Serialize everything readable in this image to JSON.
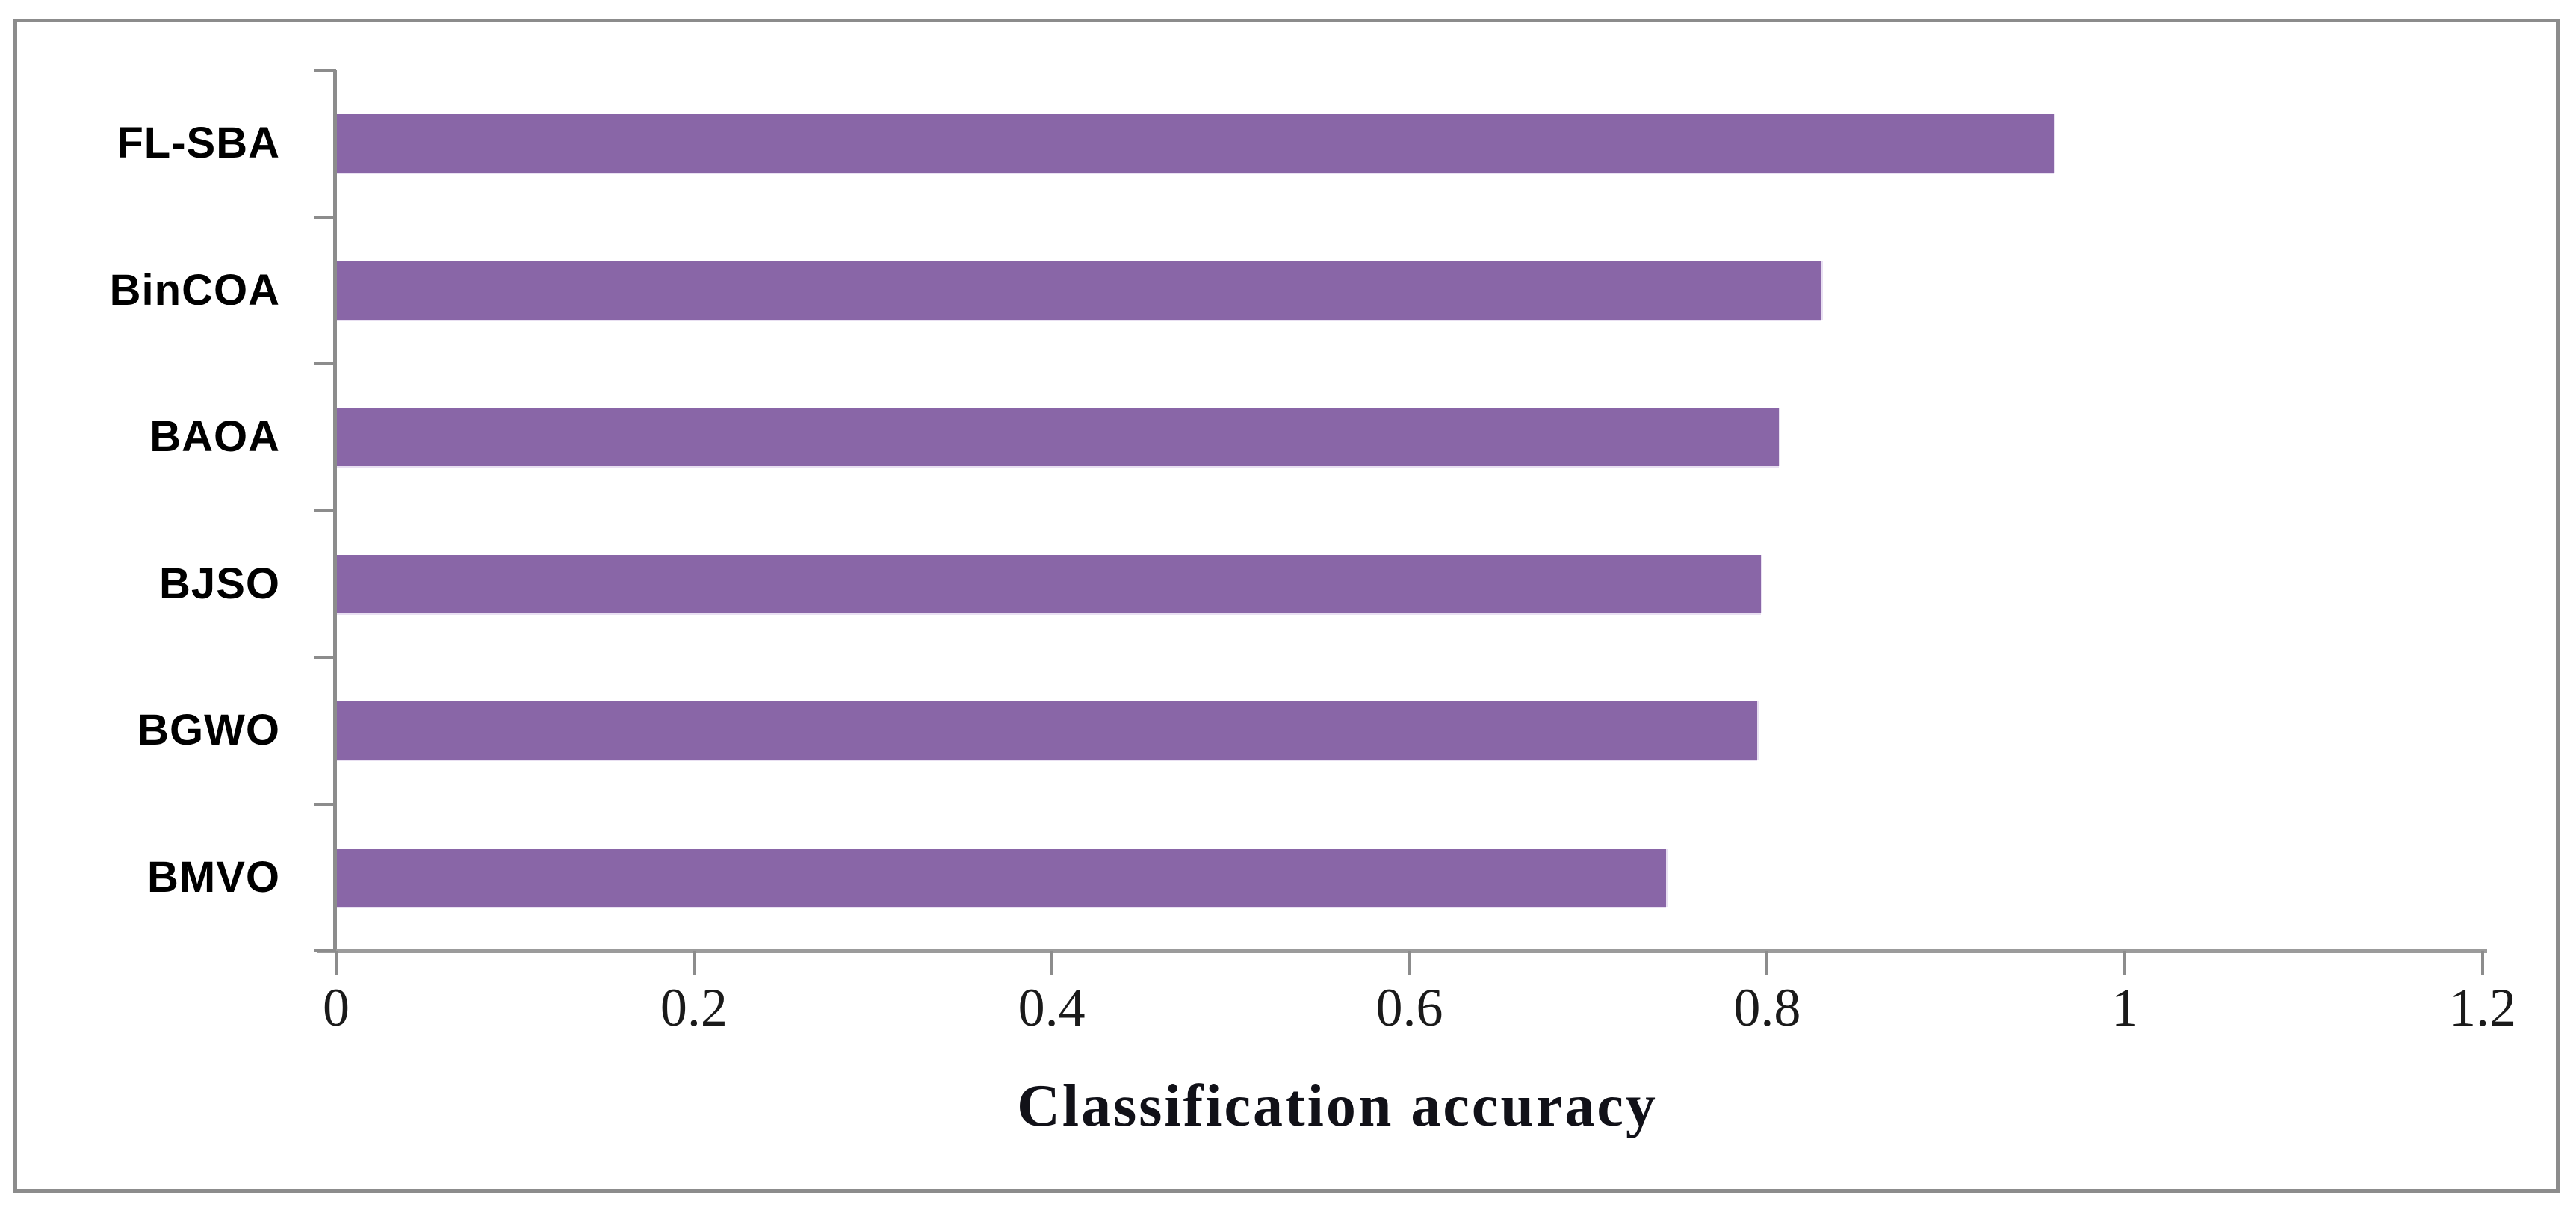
{
  "figure": {
    "background": "#ffffff",
    "border_color": "#8C8C8C",
    "axis_line_color": "#9B9B9B",
    "tick_color": "#8C8C8C",
    "text_color": "#000000"
  },
  "chart_data": {
    "type": "bar",
    "orientation": "horizontal",
    "title": "",
    "xlabel": "Classification accuracy",
    "ylabel": "",
    "categories": [
      "FL-SBA",
      "BinCOA",
      "BAOA",
      "BJSO",
      "BGWO",
      "BMVO"
    ],
    "values": [
      0.96,
      0.83,
      0.806,
      0.796,
      0.794,
      0.743
    ],
    "xlim": [
      0,
      1.2
    ],
    "xticks": [
      0,
      0.2,
      0.4,
      0.6,
      0.8,
      1,
      1.2
    ],
    "xtick_labels": [
      "0",
      "0.2",
      "0.4",
      "0.6",
      "0.8",
      "1",
      "1.2"
    ],
    "bar_color": "#8966A7",
    "grid": false,
    "legend": null
  }
}
